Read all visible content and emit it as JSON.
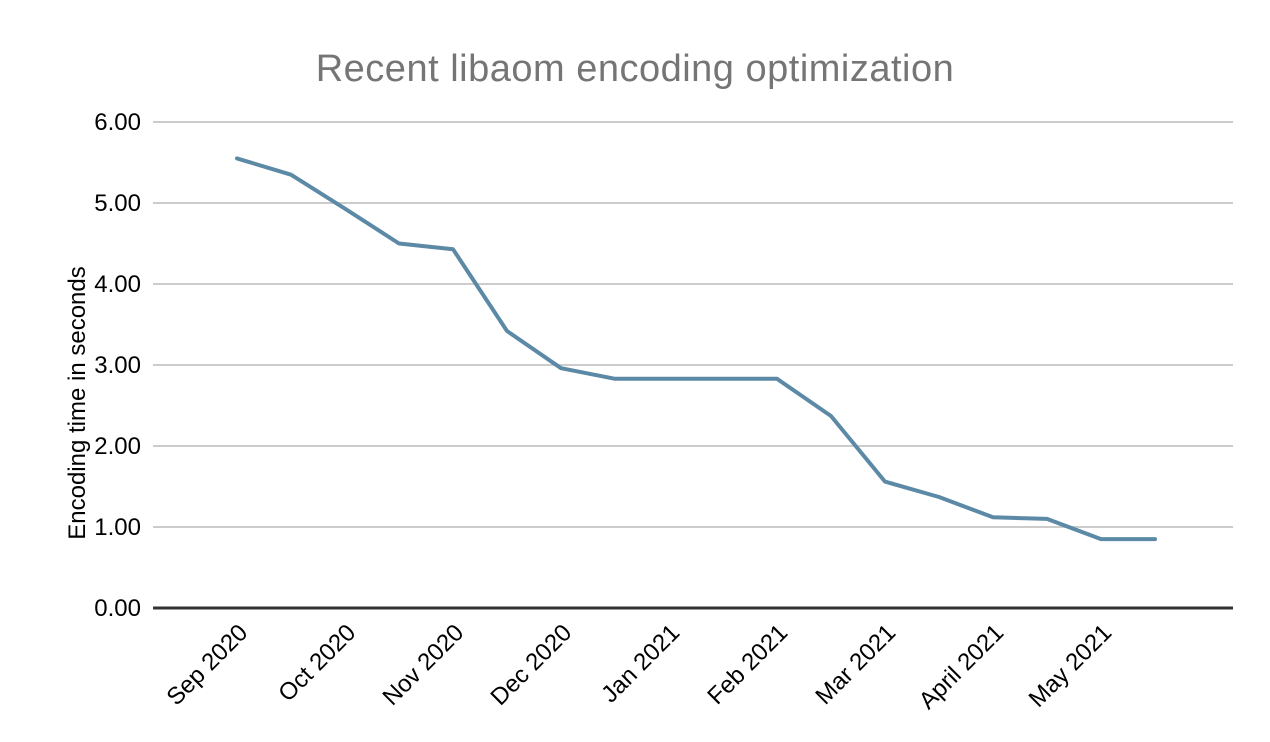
{
  "chart_data": {
    "type": "line",
    "title": "Recent libaom encoding optimization",
    "xlabel": "",
    "ylabel": "Encoding time in seconds",
    "x_tick_labels": [
      "Sep 2020",
      "Oct 2020",
      "Nov 2020",
      "Dec 2020",
      "Jan 2021",
      "Feb 2021",
      "Mar 2021",
      "April 2021",
      "May 2021"
    ],
    "y_tick_labels": [
      "0.00",
      "1.00",
      "2.00",
      "3.00",
      "4.00",
      "5.00",
      "6.00"
    ],
    "ylim": [
      0,
      6
    ],
    "y_tick_step": 1.0,
    "grid": "horizontal-only",
    "legend_position": "none",
    "point_markers": false,
    "x_unit": "months_since_Sep_2020_tick_two_points_per_month",
    "x": [
      0,
      0.5,
      1,
      1.5,
      2,
      2.5,
      3,
      3.5,
      4,
      4.5,
      5,
      5.5,
      6,
      6.5,
      7,
      7.5,
      8,
      8.5
    ],
    "values": [
      5.55,
      5.35,
      4.93,
      4.5,
      4.43,
      3.42,
      2.96,
      2.83,
      2.83,
      2.83,
      2.83,
      2.37,
      1.56,
      1.37,
      1.12,
      1.1,
      0.85,
      0.85
    ],
    "colors": {
      "line": "#5b89a6",
      "gridline": "#cccccc",
      "axis_line": "#333333",
      "title_text": "#757575",
      "tick_text": "#000000"
    }
  }
}
